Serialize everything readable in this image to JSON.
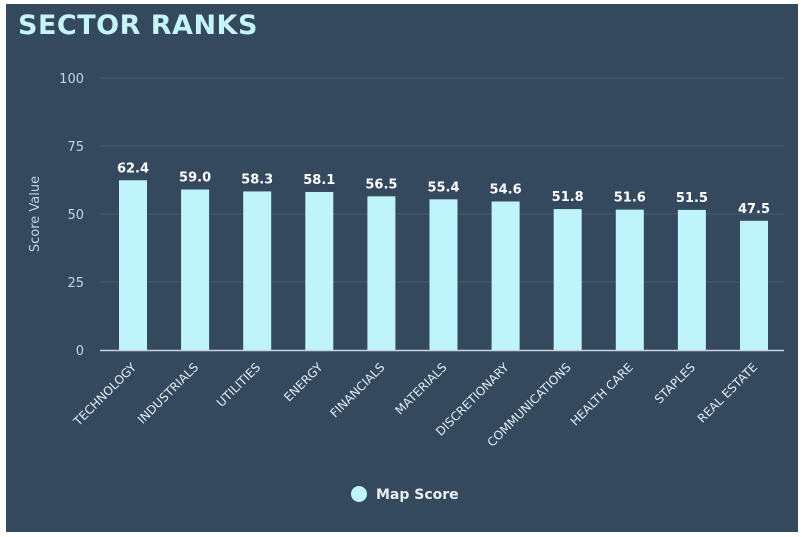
{
  "header": {
    "title": "SECTOR RANKS"
  },
  "colors": {
    "background": "#34495e",
    "bar": "#bff4fb",
    "title": "#c4f5fb",
    "grid": "#445b70",
    "axis": "#c9d3dc"
  },
  "chart_data": {
    "type": "bar",
    "title": "SECTOR RANKS",
    "xlabel": "",
    "ylabel": "Score Value",
    "ylim": [
      0,
      100
    ],
    "yticks": [
      0,
      25,
      50,
      75,
      100
    ],
    "grid": true,
    "legend_position": "bottom-center",
    "categories": [
      "TECHNOLOGY",
      "INDUSTRIALS",
      "UTILITIES",
      "ENERGY",
      "FINANCIALS",
      "MATERIALS",
      "DISCRETIONARY",
      "COMMUNICATIONS",
      "HEALTH CARE",
      "STAPLES",
      "REAL ESTATE"
    ],
    "series": [
      {
        "name": "Map Score",
        "values": [
          62.4,
          59.0,
          58.3,
          58.1,
          56.5,
          55.4,
          54.6,
          51.8,
          51.6,
          51.5,
          47.5
        ],
        "labels": [
          "62.4",
          "59.0",
          "58.3",
          "58.1",
          "56.5",
          "55.4",
          "54.6",
          "51.8",
          "51.6",
          "51.5",
          "47.5"
        ]
      }
    ]
  }
}
